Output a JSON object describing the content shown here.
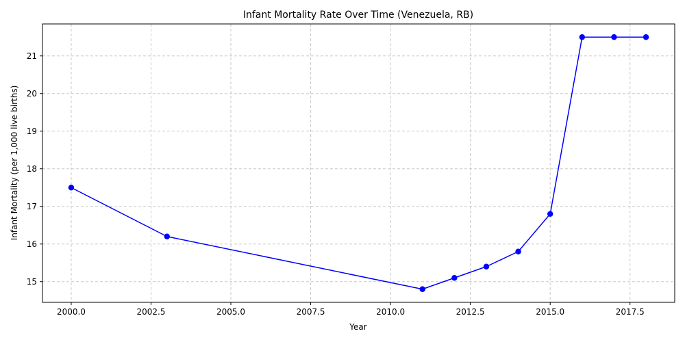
{
  "chart_data": {
    "type": "line",
    "title": "Infant Mortality Rate Over Time (Venezuela, RB)",
    "xlabel": "Year",
    "ylabel": "Infant Mortality (per 1,000 live births)",
    "x": [
      2000,
      2003,
      2011,
      2012,
      2013,
      2014,
      2015,
      2016,
      2017,
      2018
    ],
    "series": [
      {
        "values": [
          17.5,
          16.2,
          14.8,
          15.1,
          15.4,
          15.8,
          16.8,
          21.5,
          21.5,
          21.5
        ],
        "color": "#0000ff",
        "marker": "circle"
      }
    ],
    "xlim": [
      1999.1,
      2018.9
    ],
    "ylim": [
      14.45,
      21.85
    ],
    "xticks": [
      2000,
      2002.5,
      2005,
      2007.5,
      2010,
      2012.5,
      2015,
      2017.5
    ],
    "xtick_labels": [
      "2000.0",
      "2002.5",
      "2005.0",
      "2007.5",
      "2010.0",
      "2012.5",
      "2015.0",
      "2017.5"
    ],
    "yticks": [
      15,
      16,
      17,
      18,
      19,
      20,
      21
    ],
    "ytick_labels": [
      "15",
      "16",
      "17",
      "18",
      "19",
      "20",
      "21"
    ],
    "grid": true,
    "grid_style": "dashed",
    "grid_color": "#c8c8c8",
    "legend": "none"
  }
}
